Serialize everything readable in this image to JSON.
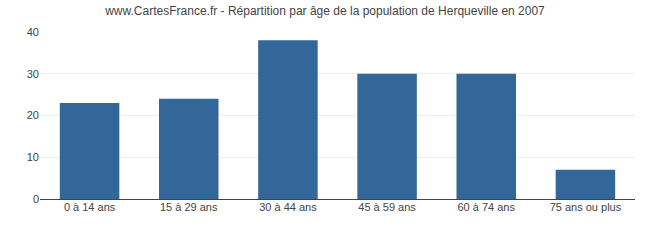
{
  "chart_data": {
    "type": "bar",
    "title": "www.CartesFrance.fr - Répartition par âge de la population de Herqueville en 2007",
    "categories": [
      "0 à 14 ans",
      "15 à 29 ans",
      "30 à 44 ans",
      "45 à 59 ans",
      "60 à 74 ans",
      "75 ans ou plus"
    ],
    "values": [
      23,
      24,
      38,
      30,
      30,
      7
    ],
    "color": "#336699",
    "ylim": [
      0,
      40
    ],
    "yticks": [
      0,
      10,
      20,
      30,
      40
    ],
    "grid": true
  }
}
